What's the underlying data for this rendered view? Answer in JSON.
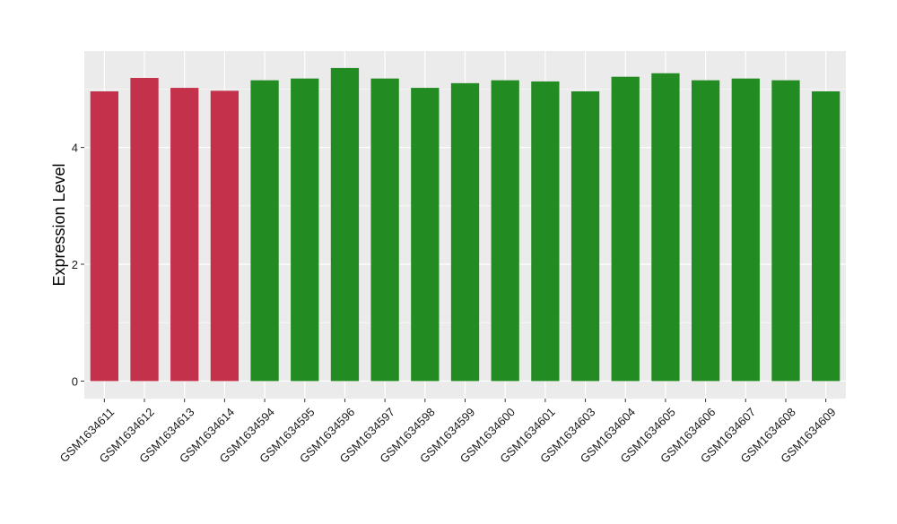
{
  "chart_data": {
    "type": "bar",
    "title": "",
    "xlabel": "",
    "ylabel": "Expression Level",
    "ylim": [
      -0.3,
      5.65
    ],
    "yticks": [
      0,
      2,
      4
    ],
    "grid": true,
    "legend": "none",
    "categories": [
      "GSM1634611",
      "GSM1634612",
      "GSM1634613",
      "GSM1634614",
      "GSM1634594",
      "GSM1634595",
      "GSM1634596",
      "GSM1634597",
      "GSM1634598",
      "GSM1634599",
      "GSM1634600",
      "GSM1634601",
      "GSM1634603",
      "GSM1634604",
      "GSM1634605",
      "GSM1634606",
      "GSM1634607",
      "GSM1634608",
      "GSM1634609"
    ],
    "values": [
      4.96,
      5.19,
      5.02,
      4.97,
      5.15,
      5.18,
      5.36,
      5.18,
      5.02,
      5.1,
      5.15,
      5.13,
      4.96,
      5.21,
      5.27,
      5.15,
      5.18,
      5.15,
      4.96
    ],
    "groups": [
      "red",
      "red",
      "red",
      "red",
      "green",
      "green",
      "green",
      "green",
      "green",
      "green",
      "green",
      "green",
      "green",
      "green",
      "green",
      "green",
      "green",
      "green",
      "green"
    ],
    "colors": {
      "red": "#c4314b",
      "green": "#228b22",
      "panel": "#ebebeb",
      "grid": "#ffffff",
      "tick_text": "#1a1a1a",
      "axis_title": "#000000"
    }
  }
}
